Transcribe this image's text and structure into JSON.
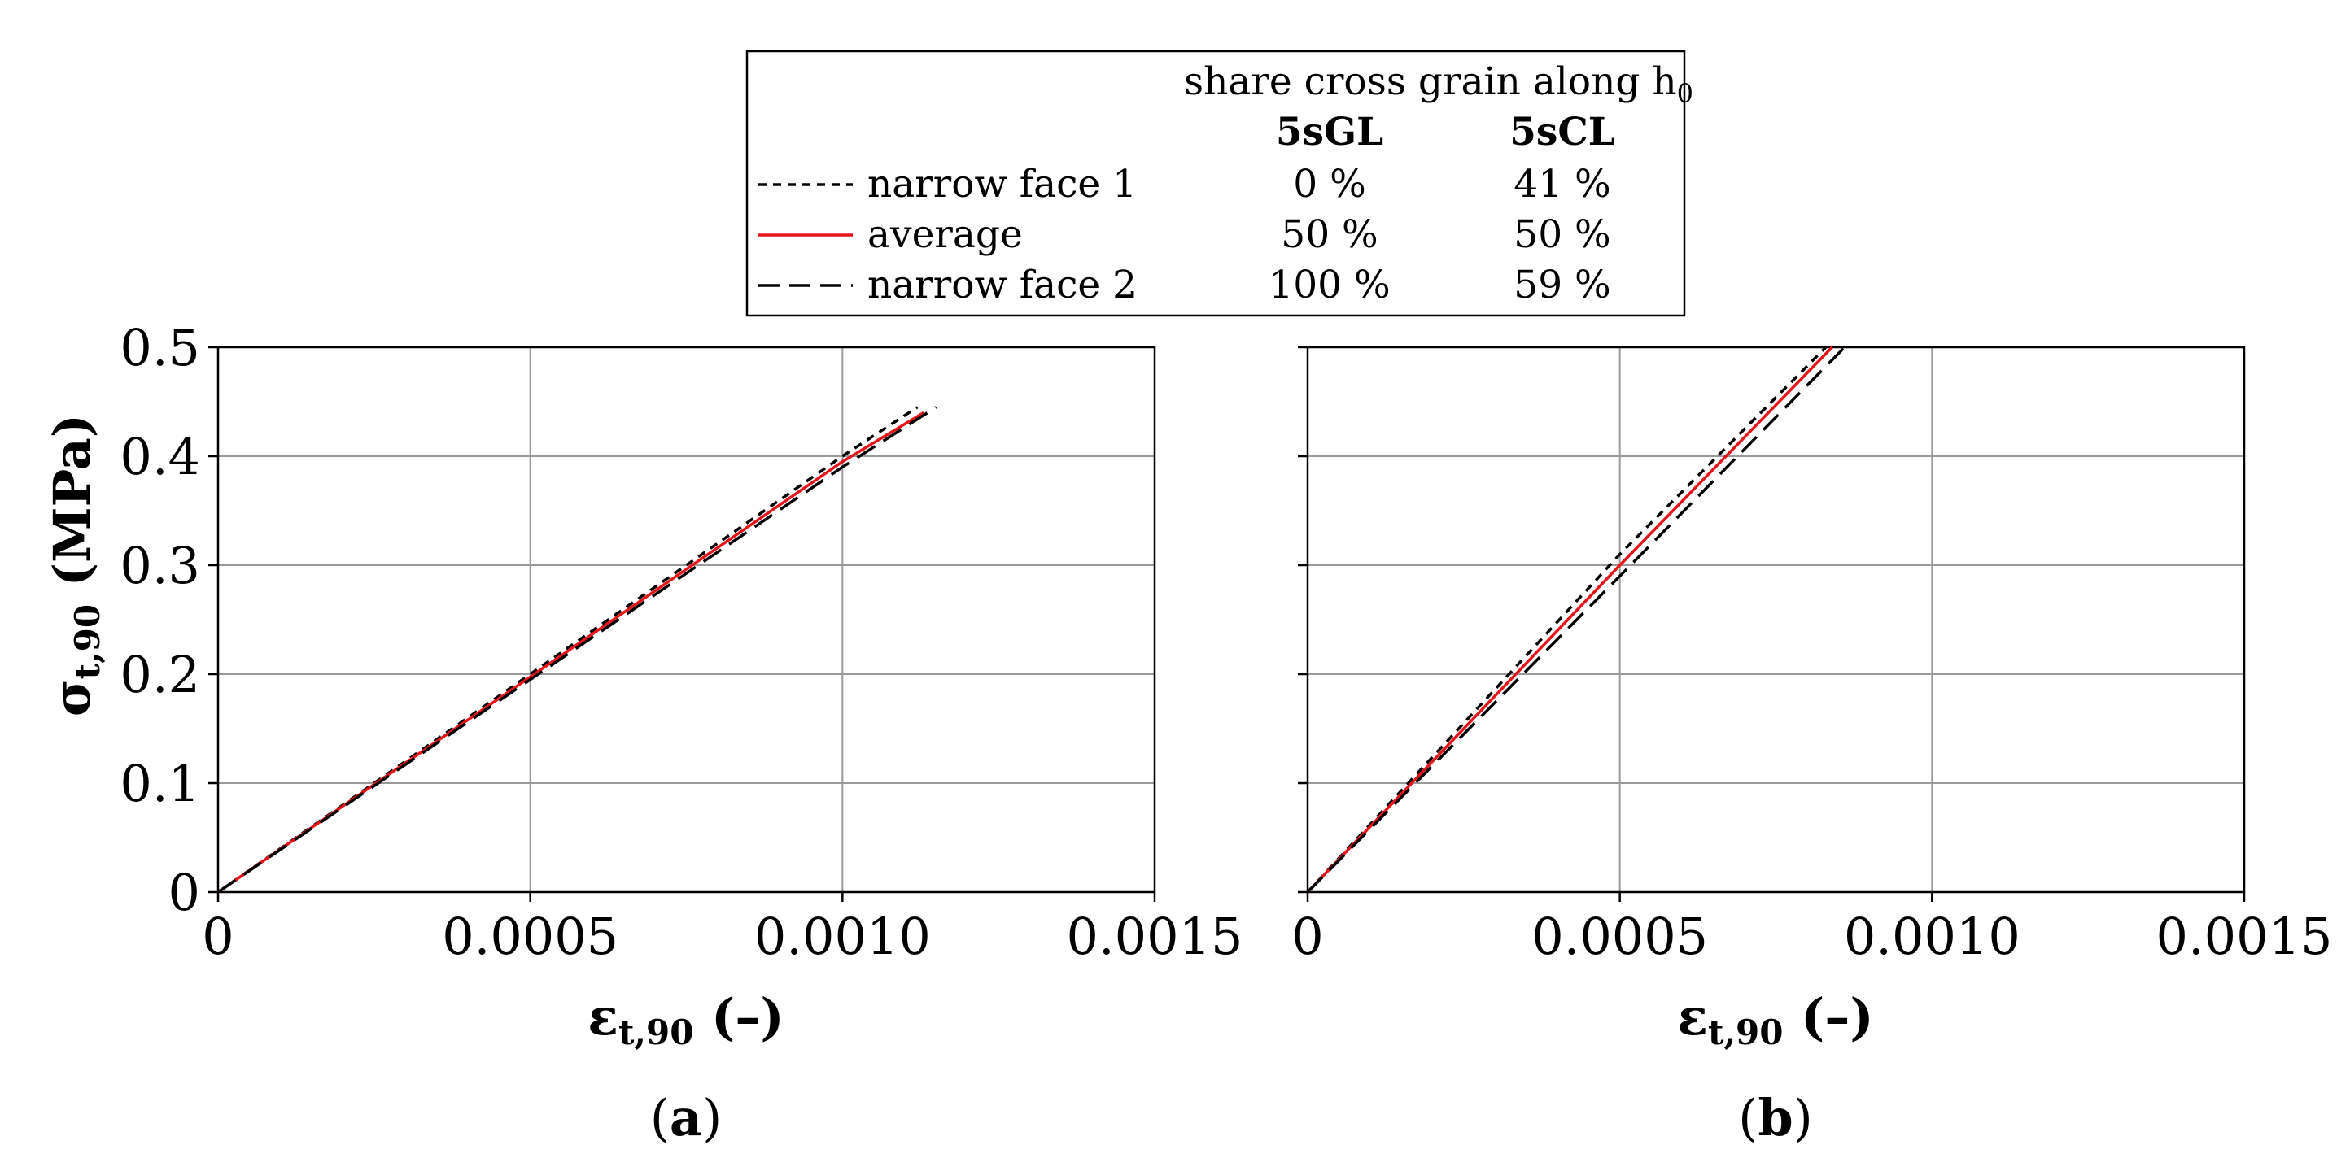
{
  "legend": {
    "header": "share cross grain along h",
    "header_sub": "0",
    "col1": "5sGL",
    "col2": "5sCL",
    "rows": [
      {
        "label": "narrow face 1",
        "v1": "0 %",
        "v2": "41 %",
        "style": "short-dash",
        "color": "#000000"
      },
      {
        "label": "average",
        "v1": "50 %",
        "v2": "50 %",
        "style": "solid",
        "color": "#e8141b"
      },
      {
        "label": "narrow face 2",
        "v1": "100 %",
        "v2": "59 %",
        "style": "long-dash",
        "color": "#000000"
      }
    ]
  },
  "chart_data": [
    {
      "type": "line",
      "panel": "(a)",
      "panel_letter": "a",
      "xlim": [
        0,
        0.0015
      ],
      "ylim": [
        0,
        0.5
      ],
      "xticks": [
        "0",
        "0.0005",
        "0.0010",
        "0.0015"
      ],
      "xtick_values": [
        0,
        0.0005,
        0.001,
        0.0015
      ],
      "yticks": [
        "0",
        "0.1",
        "0.2",
        "0.3",
        "0.4",
        "0.5"
      ],
      "ytick_values": [
        0,
        0.1,
        0.2,
        0.3,
        0.4,
        0.5
      ],
      "ylabel": "σ",
      "ylabel_sub": "t,90",
      "ylabel_unit": " (MPa)",
      "xlabel": "ε",
      "xlabel_sub": "t,90",
      "xlabel_unit": " (–)",
      "grid": true,
      "series": [
        {
          "name": "narrow face 1",
          "style": "short-dash",
          "color": "#000000",
          "x": [
            0,
            0.001,
            0.00112
          ],
          "y": [
            0,
            0.4,
            0.445
          ]
        },
        {
          "name": "average",
          "style": "solid",
          "color": "#e8141b",
          "x": [
            0,
            0.001,
            0.00113
          ],
          "y": [
            0,
            0.395,
            0.44
          ]
        },
        {
          "name": "narrow face 2",
          "style": "long-dash",
          "color": "#000000",
          "x": [
            0,
            0.001,
            0.00115
          ],
          "y": [
            0,
            0.39,
            0.445
          ]
        }
      ]
    },
    {
      "type": "line",
      "panel": "(b)",
      "panel_letter": "b",
      "xlim": [
        0,
        0.0015
      ],
      "ylim": [
        0,
        0.5
      ],
      "xticks": [
        "0",
        "0.0005",
        "0.0010",
        "0.0015"
      ],
      "xtick_values": [
        0,
        0.0005,
        0.001,
        0.0015
      ],
      "yticks": [],
      "ytick_values": [
        0,
        0.1,
        0.2,
        0.3,
        0.4,
        0.5
      ],
      "xlabel": "ε",
      "xlabel_sub": "t,90",
      "xlabel_unit": " (–)",
      "grid": true,
      "series": [
        {
          "name": "narrow face 1",
          "style": "short-dash",
          "color": "#000000",
          "x": [
            0,
            0.0005,
            0.00083
          ],
          "y": [
            0,
            0.31,
            0.5
          ]
        },
        {
          "name": "average",
          "style": "solid",
          "color": "#e8141b",
          "x": [
            0,
            0.0005,
            0.00084
          ],
          "y": [
            0,
            0.3,
            0.5
          ]
        },
        {
          "name": "narrow face 2",
          "style": "long-dash",
          "color": "#000000",
          "x": [
            0,
            0.0005,
            0.00086
          ],
          "y": [
            0,
            0.29,
            0.5
          ]
        }
      ]
    }
  ]
}
